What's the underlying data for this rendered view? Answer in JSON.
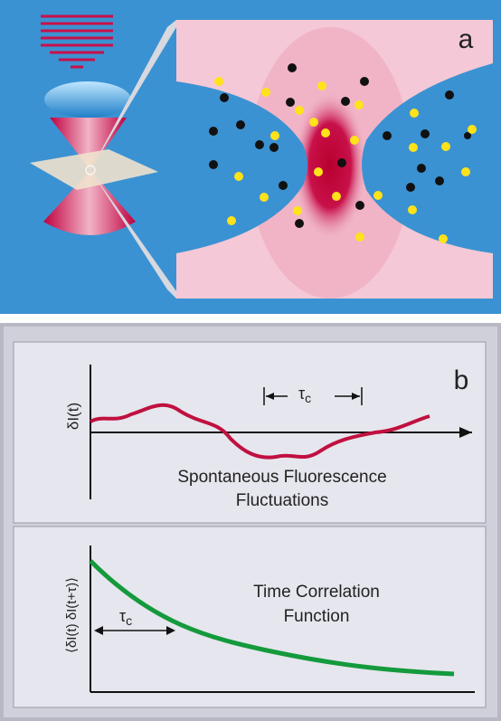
{
  "panel_a": {
    "label": "a"
  },
  "panel_b": {
    "label": "b",
    "top": {
      "y_label": "δI(t)",
      "tau": {
        "symbol": "τ",
        "subscript": "c"
      },
      "caption_line1": "Spontaneous Fluorescence",
      "caption_line2": "Fluctuations"
    },
    "bottom": {
      "y_label": "⟨δI(t) δI(t+τ)⟩",
      "tau": {
        "symbol": "τ",
        "subscript": "c"
      },
      "caption_line1": "Time Correlation",
      "caption_line2": "Function"
    }
  }
}
